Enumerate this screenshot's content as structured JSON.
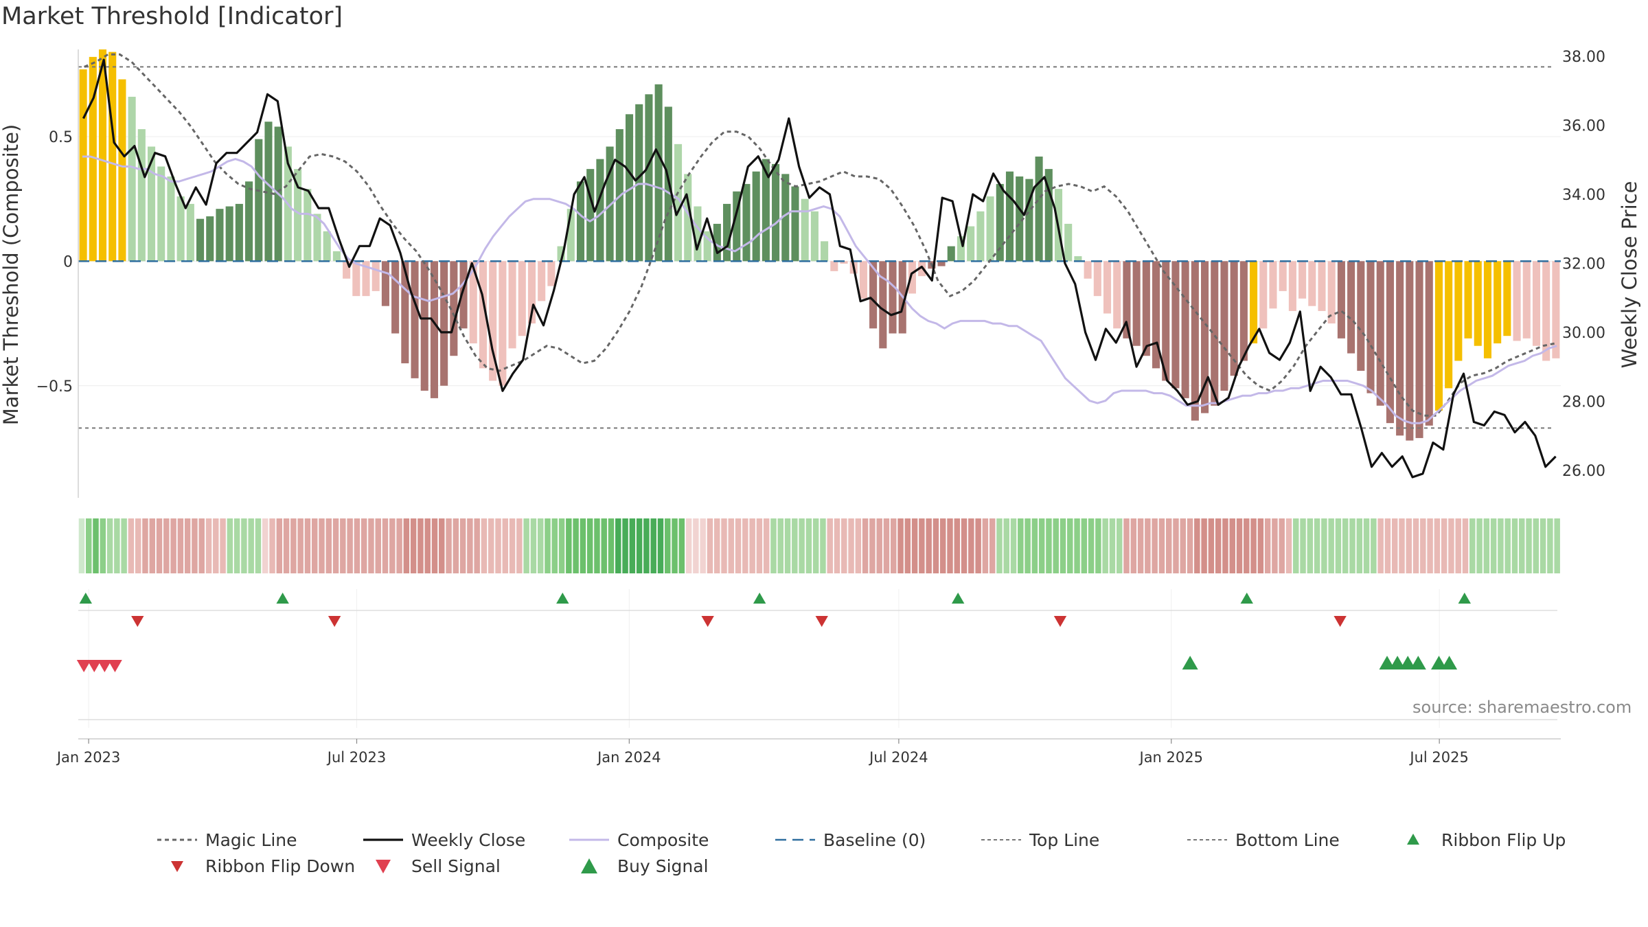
{
  "title": "Market Threshold [Indicator]",
  "source": "source: sharemaestro.com",
  "colors": {
    "strong_up": "#5e8f5e",
    "weak_up": "#aed6a9",
    "strong_down": "#a8736f",
    "weak_down": "#efc1bc",
    "extreme": "#f5bf00",
    "weekly_close": "#111111",
    "composite": "#c3b8e8",
    "magic": "#666666",
    "baseline": "#2e6e9e",
    "threshold": "#777777",
    "flip_up": "#2f9a4a",
    "flip_down": "#cc3333",
    "sell": "#e04050",
    "buy": "#2f9a4a"
  },
  "legend": [
    {
      "key": "magic",
      "label": "Magic Line"
    },
    {
      "key": "close",
      "label": "Weekly Close"
    },
    {
      "key": "composite",
      "label": "Composite"
    },
    {
      "key": "baseline",
      "label": "Baseline (0)"
    },
    {
      "key": "top",
      "label": "Top Line"
    },
    {
      "key": "bottom",
      "label": "Bottom Line"
    },
    {
      "key": "flip_up",
      "label": "Ribbon Flip Up"
    },
    {
      "key": "flip_down",
      "label": "Ribbon Flip Down"
    },
    {
      "key": "sell",
      "label": "Sell Signal"
    },
    {
      "key": "buy",
      "label": "Buy Signal"
    }
  ],
  "chart_data": {
    "type": "bar",
    "ylabel": "Market Threshold (Composite)",
    "y2label": "Weekly Close Price",
    "ylim": [
      -0.95,
      0.85
    ],
    "y2lim": [
      25.2,
      38.2
    ],
    "yticks": [
      {
        "v": 0.5,
        "label": "0.5"
      },
      {
        "v": 0,
        "label": "0"
      },
      {
        "v": -0.5,
        "label": "−0.5"
      }
    ],
    "y2ticks": [
      "38.00",
      "36.00",
      "34.00",
      "32.00",
      "30.00",
      "28.00",
      "26.00"
    ],
    "x_start": "2022-12-25",
    "x_end": "2025-09-21",
    "xticks": [
      {
        "date": "2023-01-01",
        "label": "Jan 2023"
      },
      {
        "date": "2023-07-01",
        "label": "Jul 2023"
      },
      {
        "date": "2024-01-01",
        "label": "Jan 2024"
      },
      {
        "date": "2024-07-01",
        "label": "Jul 2024"
      },
      {
        "date": "2025-01-01",
        "label": "Jan 2025"
      },
      {
        "date": "2025-07-01",
        "label": "Jul 2025"
      }
    ],
    "top_line": 0.78,
    "bottom_line": -0.67,
    "composite_bars": [
      0.77,
      0.82,
      0.85,
      0.84,
      0.73,
      0.66,
      0.53,
      0.46,
      0.38,
      0.34,
      0.26,
      0.23,
      0.17,
      0.18,
      0.21,
      0.22,
      0.23,
      0.32,
      0.49,
      0.56,
      0.54,
      0.46,
      0.37,
      0.29,
      0.19,
      0.12,
      0.04,
      -0.07,
      -0.14,
      -0.14,
      -0.12,
      -0.18,
      -0.29,
      -0.41,
      -0.47,
      -0.52,
      -0.55,
      -0.5,
      -0.38,
      -0.27,
      -0.33,
      -0.43,
      -0.48,
      -0.5,
      -0.35,
      -0.3,
      -0.25,
      -0.16,
      -0.1,
      0.06,
      0.21,
      0.32,
      0.37,
      0.41,
      0.46,
      0.53,
      0.59,
      0.63,
      0.67,
      0.71,
      0.62,
      0.47,
      0.35,
      0.22,
      0.12,
      0.15,
      0.23,
      0.28,
      0.31,
      0.36,
      0.41,
      0.39,
      0.35,
      0.3,
      0.25,
      0.2,
      0.08,
      -0.04,
      -0.01,
      -0.05,
      -0.15,
      -0.27,
      -0.35,
      -0.29,
      -0.29,
      -0.13,
      -0.06,
      -0.03,
      -0.02,
      0.06,
      0.1,
      0.14,
      0.2,
      0.26,
      0.31,
      0.36,
      0.34,
      0.33,
      0.42,
      0.37,
      0.29,
      0.15,
      0.02,
      -0.07,
      -0.14,
      -0.21,
      -0.27,
      -0.31,
      -0.34,
      -0.38,
      -0.43,
      -0.48,
      -0.51,
      -0.55,
      -0.64,
      -0.61,
      -0.58,
      -0.52,
      -0.46,
      -0.4,
      -0.33,
      -0.27,
      -0.19,
      -0.12,
      -0.2,
      -0.15,
      -0.18,
      -0.2,
      -0.25,
      -0.31,
      -0.37,
      -0.44,
      -0.53,
      -0.58,
      -0.65,
      -0.7,
      -0.72,
      -0.71,
      -0.66,
      -0.6,
      -0.51,
      -0.4,
      -0.31,
      -0.34,
      -0.39,
      -0.33,
      -0.3,
      -0.32,
      -0.31,
      -0.34,
      -0.4,
      -0.39
    ],
    "bar_shade": "WWWWWLLLLLLLDDDDDDDDDLLLLLLLLAADDDDDDDDDAAAAAAAAALLDDDDDDDDDDLLLLDDDDDDDDDLLLLLLLDDDDAADDDLLLLDDDDDDLLLLLAADDDDDDDDDDDDDWAAAAAAAADDDDDDDDDDWWWWWWWWAAAAAAAA",
    "weekly_close": [
      36.2,
      36.8,
      37.9,
      35.5,
      35.1,
      35.4,
      34.5,
      35.2,
      35.1,
      34.3,
      33.6,
      34.2,
      33.7,
      34.9,
      35.2,
      35.2,
      35.5,
      35.8,
      36.9,
      36.7,
      34.9,
      34.2,
      34.1,
      33.6,
      33.6,
      32.7,
      31.9,
      32.5,
      32.5,
      33.3,
      33.1,
      32.3,
      31.2,
      30.4,
      30.4,
      30.0,
      30.0,
      31.1,
      32.0,
      31.1,
      29.5,
      28.3,
      28.8,
      29.2,
      30.8,
      30.2,
      31.2,
      32.4,
      34.0,
      34.5,
      33.5,
      34.3,
      35.0,
      34.8,
      34.4,
      34.7,
      35.3,
      34.7,
      33.4,
      34.0,
      32.4,
      33.3,
      32.3,
      32.5,
      33.6,
      34.8,
      35.1,
      34.5,
      35.0,
      36.2,
      34.8,
      33.9,
      34.2,
      34.0,
      32.5,
      32.4,
      30.9,
      31.0,
      30.7,
      30.5,
      30.6,
      31.7,
      31.9,
      31.5,
      33.9,
      33.8,
      32.5,
      34.0,
      33.8,
      34.6,
      34.1,
      33.8,
      33.4,
      34.2,
      34.5,
      33.6,
      32.0,
      31.4,
      30.0,
      29.2,
      30.1,
      29.7,
      30.3,
      29.0,
      29.6,
      29.7,
      28.6,
      28.3,
      27.9,
      28.0,
      28.7,
      27.9,
      28.1,
      29.0,
      29.6,
      30.1,
      29.4,
      29.2,
      29.7,
      30.6,
      28.3,
      29.0,
      28.7,
      28.2,
      28.2,
      27.2,
      26.1,
      26.5,
      26.1,
      26.4,
      25.8,
      25.9,
      26.8,
      26.6,
      28.2,
      28.8,
      27.4,
      27.3,
      27.7,
      27.6,
      27.1,
      27.4,
      27.0,
      26.1,
      26.4
    ],
    "composite_line": [
      0.42,
      0.42,
      0.41,
      0.4,
      0.39,
      0.38,
      0.38,
      0.37,
      0.37,
      0.35,
      0.34,
      0.32,
      0.32,
      0.33,
      0.34,
      0.35,
      0.36,
      0.38,
      0.4,
      0.41,
      0.4,
      0.38,
      0.34,
      0.31,
      0.28,
      0.25,
      0.21,
      0.19,
      0.19,
      0.18,
      0.15,
      0.1,
      0.05,
      0.01,
      -0.01,
      -0.02,
      -0.03,
      -0.04,
      -0.05,
      -0.08,
      -0.11,
      -0.14,
      -0.15,
      -0.16,
      -0.15,
      -0.14,
      -0.13,
      -0.1,
      -0.06,
      -0.01,
      0.05,
      0.1,
      0.14,
      0.18,
      0.21,
      0.24,
      0.25,
      0.25,
      0.25,
      0.24,
      0.23,
      0.21,
      0.18,
      0.16,
      0.18,
      0.21,
      0.24,
      0.27,
      0.29,
      0.31,
      0.31,
      0.3,
      0.29,
      0.27,
      0.25,
      0.2,
      0.15,
      0.11,
      0.08,
      0.06,
      0.05,
      0.04,
      0.06,
      0.08,
      0.11,
      0.13,
      0.15,
      0.18,
      0.2,
      0.2,
      0.2,
      0.21,
      0.22,
      0.21,
      0.18,
      0.12,
      0.06,
      0.02,
      -0.02,
      -0.06,
      -0.08,
      -0.11,
      -0.15,
      -0.19,
      -0.22,
      -0.24,
      -0.25,
      -0.27,
      -0.25,
      -0.24,
      -0.24,
      -0.24,
      -0.24,
      -0.25,
      -0.25,
      -0.26,
      -0.26,
      -0.28,
      -0.3,
      -0.32,
      -0.37,
      -0.42,
      -0.47,
      -0.5,
      -0.53,
      -0.56,
      -0.57,
      -0.56,
      -0.53,
      -0.52,
      -0.52,
      -0.52,
      -0.52,
      -0.53,
      -0.53,
      -0.54,
      -0.56,
      -0.58,
      -0.58,
      -0.58,
      -0.57,
      -0.57,
      -0.56,
      -0.55,
      -0.54,
      -0.54,
      -0.53,
      -0.53,
      -0.52,
      -0.52,
      -0.51,
      -0.51,
      -0.5,
      -0.49,
      -0.48,
      -0.48,
      -0.48,
      -0.48,
      -0.49,
      -0.5,
      -0.52,
      -0.55,
      -0.58,
      -0.62,
      -0.64,
      -0.65,
      -0.65,
      -0.64,
      -0.61,
      -0.58,
      -0.55,
      -0.52,
      -0.5,
      -0.48,
      -0.47,
      -0.46,
      -0.44,
      -0.42,
      -0.41,
      -0.4,
      -0.38,
      -0.37,
      -0.35,
      -0.34
    ],
    "magic_line": [
      0.78,
      0.8,
      0.83,
      0.83,
      0.8,
      0.75,
      0.7,
      0.65,
      0.6,
      0.54,
      0.47,
      0.4,
      0.35,
      0.31,
      0.29,
      0.28,
      0.27,
      0.3,
      0.36,
      0.42,
      0.43,
      0.42,
      0.4,
      0.36,
      0.3,
      0.22,
      0.15,
      0.09,
      0.04,
      -0.03,
      -0.11,
      -0.2,
      -0.3,
      -0.38,
      -0.43,
      -0.44,
      -0.42,
      -0.4,
      -0.37,
      -0.34,
      -0.35,
      -0.38,
      -0.41,
      -0.4,
      -0.35,
      -0.28,
      -0.2,
      -0.1,
      0.03,
      0.17,
      0.27,
      0.35,
      0.42,
      0.48,
      0.52,
      0.52,
      0.5,
      0.45,
      0.38,
      0.32,
      0.3,
      0.31,
      0.32,
      0.34,
      0.36,
      0.34,
      0.34,
      0.33,
      0.29,
      0.22,
      0.14,
      0.04,
      -0.08,
      -0.14,
      -0.12,
      -0.08,
      -0.02,
      0.04,
      0.1,
      0.16,
      0.22,
      0.28,
      0.3,
      0.31,
      0.3,
      0.28,
      0.3,
      0.26,
      0.2,
      0.12,
      0.04,
      -0.04,
      -0.1,
      -0.16,
      -0.22,
      -0.28,
      -0.34,
      -0.4,
      -0.46,
      -0.5,
      -0.52,
      -0.48,
      -0.42,
      -0.34,
      -0.28,
      -0.22,
      -0.2,
      -0.24,
      -0.3,
      -0.38,
      -0.46,
      -0.54,
      -0.6,
      -0.62,
      -0.62,
      -0.56,
      -0.49,
      -0.46,
      -0.45,
      -0.43,
      -0.4,
      -0.38,
      -0.36,
      -0.34,
      -0.33
    ],
    "ribbon_shade": [
      1,
      3,
      4,
      3,
      2,
      2,
      2,
      -2,
      -2,
      -3,
      -3,
      -3,
      -3,
      -3,
      -3,
      -3,
      -3,
      -3,
      -2,
      -2,
      -2,
      2,
      2,
      2,
      2,
      2,
      -1,
      -2,
      -3,
      -3,
      -3,
      -3,
      -3,
      -3,
      -3,
      -3,
      -3,
      -3,
      -3,
      -3,
      -3,
      -3,
      -3,
      -3,
      -3,
      -3,
      -4,
      -4,
      -4,
      -4,
      -4,
      -4,
      -3,
      -3,
      -3,
      -3,
      -3,
      -2,
      -2,
      -2,
      -2,
      -2,
      -2,
      2,
      2,
      2,
      3,
      3,
      3,
      4,
      4,
      4,
      4,
      4,
      4,
      4,
      5,
      5,
      5,
      5,
      5,
      5,
      5,
      4,
      4,
      4,
      -1,
      -1,
      -1,
      -2,
      -2,
      -2,
      -2,
      -2,
      -2,
      -2,
      -2,
      -2,
      2,
      2,
      2,
      2,
      2,
      2,
      2,
      2,
      -2,
      -2,
      -2,
      -2,
      -2,
      -3,
      -3,
      -3,
      -3,
      -3,
      -4,
      -4,
      -4,
      -4,
      -4,
      -4,
      -4,
      -4,
      -4,
      -4,
      -4,
      -4,
      -3,
      -3,
      2,
      2,
      2,
      3,
      3,
      3,
      3,
      3,
      3,
      3,
      3,
      3,
      3,
      3,
      3,
      2,
      2,
      2,
      -3,
      -3,
      -3,
      -3,
      -3,
      -3,
      -3,
      -3,
      -3,
      -3,
      -4,
      -4,
      -4,
      -4,
      -4,
      -4,
      -4,
      -4,
      -4,
      -4,
      -3,
      -3,
      -3,
      -2,
      2,
      2,
      2,
      2,
      2,
      2,
      2,
      2,
      2,
      2,
      2,
      2,
      -2,
      -2,
      -2,
      -2,
      -2,
      -2,
      -2,
      -2,
      -2,
      -2,
      -2,
      -2,
      -2,
      2,
      2,
      2,
      2,
      2,
      2,
      2,
      2,
      2,
      2,
      2,
      2,
      2
    ],
    "ribbon_flip_up": [
      "2022-12-30",
      "2023-05-12",
      "2023-11-17",
      "2024-03-29",
      "2024-08-10",
      "2025-02-21",
      "2025-07-18"
    ],
    "ribbon_flip_down": [
      "2023-02-03",
      "2023-06-16",
      "2024-02-23",
      "2024-05-10",
      "2024-10-18",
      "2025-04-25"
    ],
    "sell_signals": [
      "2022-12-26",
      "2023-01-02",
      "2023-01-09",
      "2023-01-16"
    ],
    "buy_signals": [
      "2025-01-10",
      "2025-05-23",
      "2025-05-30",
      "2025-06-06",
      "2025-06-13",
      "2025-06-27",
      "2025-07-04"
    ]
  }
}
